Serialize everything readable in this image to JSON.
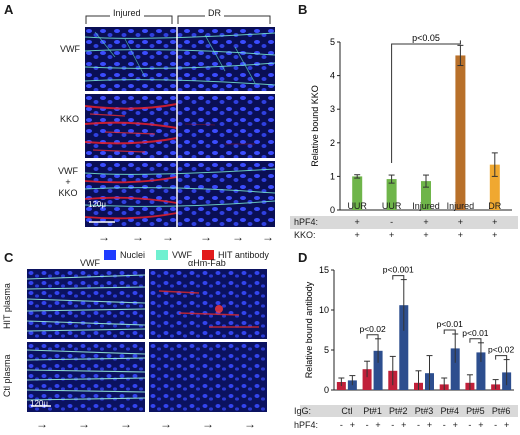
{
  "panelA": {
    "label": "A",
    "col_headers": [
      "Injured",
      "DR"
    ],
    "row_labels": [
      "VWF",
      "KKO",
      "VWF\n+\nKKO"
    ],
    "row_label_lines": [
      "VWF",
      "+",
      "KKO"
    ],
    "scale_bar": "120μ",
    "legend": [
      {
        "label": "Nuclei",
        "color": "#1f3cff"
      },
      {
        "label": "VWF",
        "color": "#6ff0d0"
      },
      {
        "label": "HIT antibody",
        "color": "#e21b1b"
      }
    ]
  },
  "panelB": {
    "label": "B",
    "chart_data": {
      "type": "bar",
      "categories": [
        "UUR",
        "UUR",
        "Injured",
        "Injured",
        "DR"
      ],
      "values": [
        1.0,
        0.92,
        0.86,
        4.6,
        1.35
      ],
      "errors": [
        0.05,
        0.12,
        0.18,
        0.3,
        0.35
      ],
      "colors": [
        "#6fb54a",
        "#6fb54a",
        "#6fb54a",
        "#b8702a",
        "#f0a830"
      ],
      "ylabel": "Relative bound KKO",
      "ylim": [
        0,
        5
      ],
      "yticks": [
        0,
        1,
        2,
        3,
        4,
        5
      ],
      "annotation": "p<0.05",
      "rows": [
        {
          "label": "hPF4:",
          "values": [
            "+",
            "-",
            "+",
            "+",
            "+"
          ]
        },
        {
          "label": "KKO:",
          "values": [
            "+",
            "+",
            "+",
            "+",
            "+"
          ]
        }
      ]
    }
  },
  "panelC": {
    "label": "C",
    "col_headers": [
      "VWF",
      "αHm-Fab"
    ],
    "row_labels": [
      "HIT plasma",
      "Ctl plasma"
    ],
    "scale_bar": "120μ"
  },
  "panelD": {
    "label": "D",
    "chart_data": {
      "type": "bar",
      "categories": [
        "Ctl",
        "Pt#1",
        "Pt#2",
        "Pt#3",
        "Pt#4",
        "Pt#5",
        "Pt#6"
      ],
      "series": [
        {
          "name": "-",
          "values": [
            1.0,
            2.6,
            2.4,
            0.9,
            0.7,
            0.9,
            0.7
          ],
          "errors": [
            0.5,
            1.0,
            1.8,
            1.5,
            0.8,
            1.0,
            0.6
          ],
          "color": "#c0203a"
        },
        {
          "name": "+",
          "values": [
            1.2,
            4.9,
            10.6,
            2.1,
            5.2,
            4.7,
            2.2
          ],
          "errors": [
            0.6,
            1.5,
            3.2,
            2.2,
            1.8,
            1.2,
            1.6
          ],
          "color": "#2d4e8e"
        }
      ],
      "ylabel": "Relative bound antibody",
      "ylim": [
        0,
        15
      ],
      "yticks": [
        0,
        5,
        10,
        15
      ],
      "annotations": [
        {
          "text": "p<0.02",
          "index": 1
        },
        {
          "text": "p<0.001",
          "index": 2
        },
        {
          "text": "p<0.01",
          "index": 4
        },
        {
          "text": "p<0.01",
          "index": 5
        },
        {
          "text": "p<0.02",
          "index": 6
        }
      ],
      "rows": [
        {
          "label": "IgG:"
        },
        {
          "label": "hPF4:",
          "values": [
            "-",
            "+"
          ]
        }
      ]
    }
  }
}
